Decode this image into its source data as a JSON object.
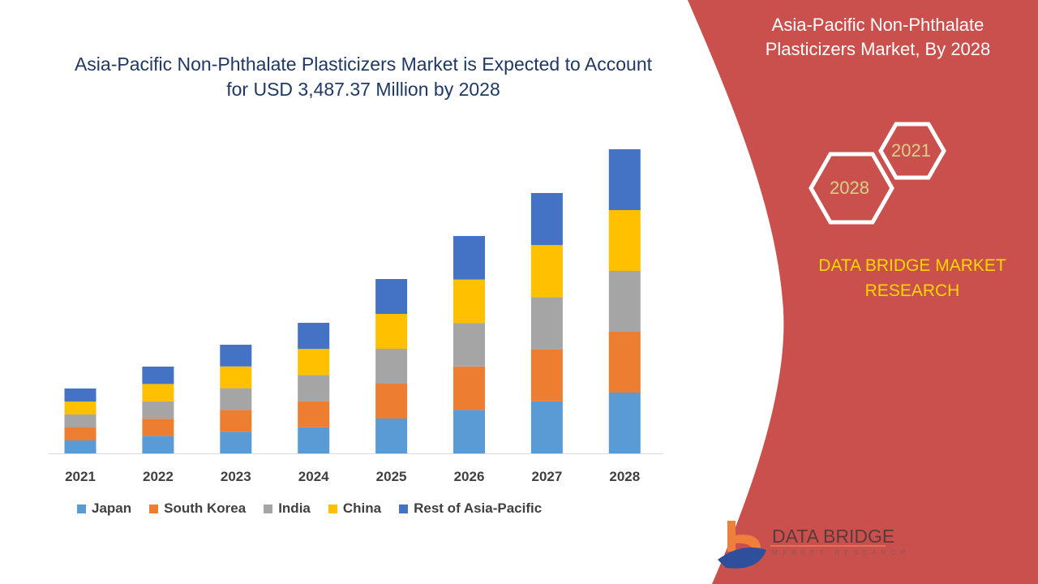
{
  "title": "Asia-Pacific Non-Phthalate Plasticizers Market is Expected to Account for USD 3,487.37 Million by 2028",
  "side_panel": {
    "title": "Asia-Pacific Non-Phthalate Plasticizers Market, By 2028",
    "hex_years": [
      "2021",
      "2028"
    ],
    "brand": "DATA BRIDGE MARKET RESEARCH",
    "color": "#c9504c"
  },
  "logo": {
    "name": "DATA BRIDGE",
    "sub": "MARKET RESEARCH"
  },
  "chart_data": {
    "type": "bar",
    "stacked": true,
    "title": "Asia-Pacific Non-Phthalate Plasticizers Market is Expected to Account for USD 3,487.37 Million by 2028",
    "categories": [
      "2021",
      "2022",
      "2023",
      "2024",
      "2025",
      "2026",
      "2027",
      "2028"
    ],
    "series": [
      {
        "name": "Japan",
        "color": "#5b9bd5",
        "values": [
          16,
          21.4,
          26.8,
          32.2,
          43,
          53.6,
          64.2,
          75
        ]
      },
      {
        "name": "South Korea",
        "color": "#ed7d31",
        "values": [
          16,
          21.4,
          26.8,
          32.2,
          43,
          53.6,
          64.2,
          75
        ]
      },
      {
        "name": "India",
        "color": "#a5a5a5",
        "values": [
          16,
          21.4,
          26.8,
          32.2,
          43,
          53.6,
          64.2,
          75
        ]
      },
      {
        "name": "China",
        "color": "#ffc000",
        "values": [
          16,
          21.4,
          26.8,
          32.2,
          43,
          53.6,
          64.2,
          75
        ]
      },
      {
        "name": "Rest of Asia-Pacific",
        "color": "#4472c4",
        "values": [
          16,
          21.4,
          26.8,
          32.2,
          43,
          53.6,
          64.2,
          75
        ]
      }
    ],
    "y_axis_shown": false,
    "grid": false,
    "legend": "bottom"
  }
}
